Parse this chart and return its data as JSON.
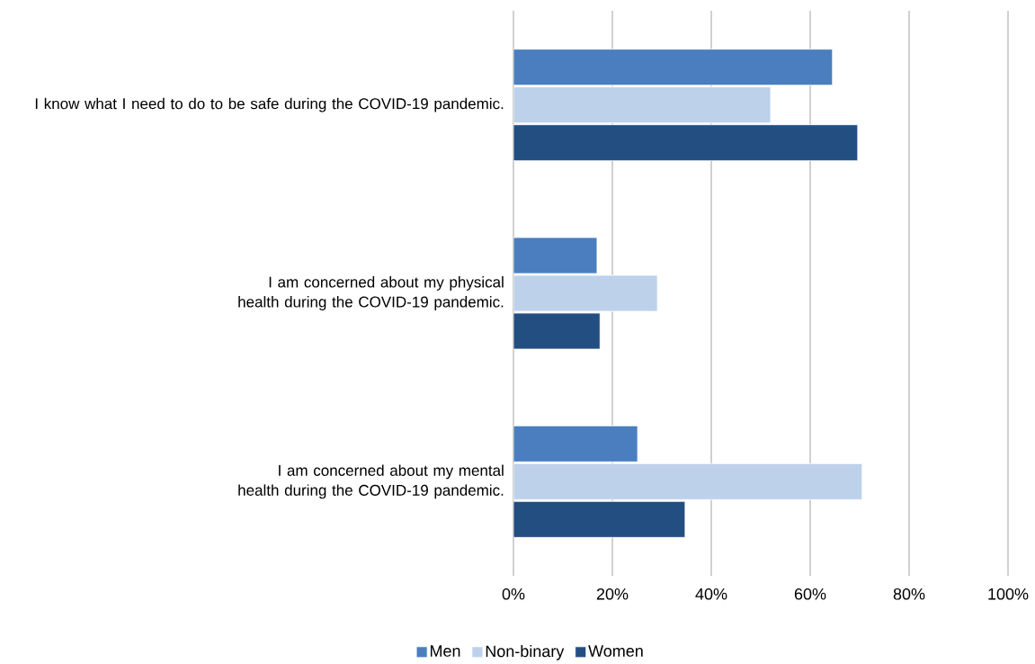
{
  "chart_data": {
    "type": "bar",
    "orientation": "horizontal",
    "categories": [
      "I know what I need to do to be safe during the COVID-19 pandemic.",
      "I am concerned about my physical health during the COVID-19 pandemic.",
      "I am concerned about my mental health during the COVID-19 pandemic."
    ],
    "series": [
      {
        "name": "Men",
        "color": "#4a7ebf",
        "values": [
          64.5,
          16.9,
          25.1
        ]
      },
      {
        "name": "Non-binary",
        "color": "#bdd1eb",
        "values": [
          52,
          29.1,
          70.5
        ]
      },
      {
        "name": "Women",
        "color": "#234e82",
        "values": [
          69.6,
          17.5,
          34.7
        ]
      }
    ],
    "xlim": [
      0,
      100
    ],
    "xticks": [
      {
        "value": 0,
        "label": "0%"
      },
      {
        "value": 20,
        "label": "20%"
      },
      {
        "value": 40,
        "label": "40%"
      },
      {
        "value": 60,
        "label": "60%"
      },
      {
        "value": 80,
        "label": "80%"
      },
      {
        "value": 100,
        "label": "100%"
      }
    ],
    "grid": "x",
    "legend": "bottom"
  }
}
